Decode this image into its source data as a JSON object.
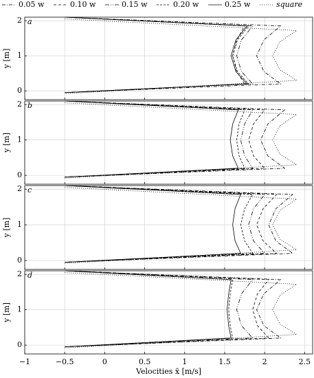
{
  "chart_data": [
    {
      "type": "line",
      "label": "a",
      "ylabel": "y [m]",
      "xlim": [
        -1,
        2.6
      ],
      "ylim": [
        -0.25,
        2.1
      ],
      "yticks": [
        0,
        1,
        2
      ],
      "xticks": [
        {
          "value": -1,
          "label": "−1"
        },
        {
          "value": -0.5,
          "label": "−0.5"
        },
        0,
        0.5,
        1,
        1.5,
        2,
        2.5
      ],
      "grid": true,
      "series": [
        {
          "name": "0.05 w",
          "color": "#000",
          "dash": "5 2 1 2",
          "x": [
            -0.5,
            2.2,
            1.99,
            1.9,
            1.99,
            2.2,
            -0.5
          ],
          "values": [
            2.1,
            1.85,
            1.45,
            1.0,
            0.55,
            0.2,
            -0.05
          ]
        },
        {
          "name": "0.10 w",
          "color": "#000",
          "dash": "4 3",
          "x": [
            -0.5,
            1.75,
            1.65,
            1.6,
            1.65,
            1.75,
            -0.5
          ],
          "values": [
            2.1,
            1.85,
            1.45,
            1.0,
            0.55,
            0.2,
            -0.05
          ]
        },
        {
          "name": "0.15 w",
          "color": "#000",
          "dash": "6 2 1 2 1 2",
          "x": [
            -0.5,
            1.85,
            1.71,
            1.65,
            1.71,
            1.85,
            -0.5
          ],
          "values": [
            2.1,
            1.85,
            1.45,
            1.0,
            0.55,
            0.2,
            -0.05
          ]
        },
        {
          "name": "0.20 w",
          "color": "#000",
          "dash": "3 2",
          "x": [
            -0.5,
            1.8,
            1.66,
            1.6,
            1.66,
            1.8,
            -0.5
          ],
          "values": [
            2.1,
            1.85,
            1.45,
            1.0,
            0.55,
            0.2,
            -0.05
          ]
        },
        {
          "name": "0.25 w",
          "color": "#000",
          "dash": "none",
          "x": [
            -0.5,
            1.78,
            1.64,
            1.58,
            1.64,
            1.78,
            -0.5
          ],
          "values": [
            2.1,
            1.85,
            1.45,
            1.0,
            0.55,
            0.2,
            -0.05
          ]
        },
        {
          "name": "square",
          "color": "#000",
          "dash": "1 2",
          "x": [
            -0.5,
            2.4,
            2.19,
            2.1,
            2.19,
            2.4,
            -0.5
          ],
          "values": [
            2.05,
            1.72,
            1.4,
            1.0,
            0.6,
            0.3,
            -0.08
          ]
        }
      ]
    },
    {
      "type": "line",
      "label": "b",
      "ylabel": "y [m]",
      "xlim": [
        -1,
        2.6
      ],
      "ylim": [
        -0.25,
        2.1
      ],
      "yticks": [
        0,
        1,
        2
      ],
      "xticks": [
        {
          "value": -1,
          "label": "−1"
        },
        {
          "value": -0.5,
          "label": "−0.5"
        },
        0,
        0.5,
        1,
        1.5,
        2,
        2.5
      ],
      "grid": true,
      "series": [
        {
          "name": "0.05 w",
          "color": "#000",
          "dash": "5 2 1 2",
          "x": [
            -0.5,
            2.25,
            2.04,
            1.95,
            2.04,
            2.25,
            -0.5
          ],
          "values": [
            2.1,
            1.85,
            1.45,
            1.0,
            0.55,
            0.2,
            -0.05
          ]
        },
        {
          "name": "0.10 w",
          "color": "#000",
          "dash": "4 3",
          "x": [
            -0.5,
            2.0,
            1.86,
            1.8,
            1.86,
            2.0,
            -0.5
          ],
          "values": [
            2.1,
            1.85,
            1.45,
            1.0,
            0.55,
            0.2,
            -0.05
          ]
        },
        {
          "name": "0.15 w",
          "color": "#000",
          "dash": "6 2 1 2 1 2",
          "x": [
            -0.5,
            1.85,
            1.75,
            1.7,
            1.75,
            1.85,
            -0.5
          ],
          "values": [
            2.1,
            1.85,
            1.45,
            1.0,
            0.55,
            0.2,
            -0.05
          ]
        },
        {
          "name": "0.20 w",
          "color": "#000",
          "dash": "3 2",
          "x": [
            -0.5,
            1.75,
            1.68,
            1.65,
            1.68,
            1.75,
            -0.5
          ],
          "values": [
            2.1,
            1.85,
            1.45,
            1.0,
            0.55,
            0.2,
            -0.05
          ]
        },
        {
          "name": "0.25 w",
          "color": "#000",
          "dash": "none",
          "x": [
            -0.5,
            1.67,
            1.6,
            1.57,
            1.6,
            1.67,
            -0.5
          ],
          "values": [
            2.1,
            1.85,
            1.45,
            1.0,
            0.55,
            0.2,
            -0.05
          ]
        },
        {
          "name": "square",
          "color": "#000",
          "dash": "1 2",
          "x": [
            -0.5,
            2.4,
            2.19,
            2.1,
            2.19,
            2.4,
            -0.5
          ],
          "values": [
            2.05,
            1.72,
            1.4,
            1.0,
            0.6,
            0.3,
            -0.08
          ]
        }
      ]
    },
    {
      "type": "line",
      "label": "c",
      "ylabel": "y [m]",
      "xlim": [
        -1,
        2.6
      ],
      "ylim": [
        -0.25,
        2.1
      ],
      "yticks": [
        0,
        1,
        2
      ],
      "xticks": [
        {
          "value": -1,
          "label": "−1"
        },
        {
          "value": -0.5,
          "label": "−0.5"
        },
        0,
        0.5,
        1,
        1.5,
        2,
        2.5
      ],
      "grid": true,
      "series": [
        {
          "name": "0.05 w",
          "color": "#000",
          "dash": "5 2 1 2",
          "x": [
            -0.5,
            2.35,
            2.14,
            2.05,
            2.14,
            2.35,
            -0.5
          ],
          "values": [
            2.1,
            1.85,
            1.45,
            1.0,
            0.55,
            0.2,
            -0.05
          ]
        },
        {
          "name": "0.10 w",
          "color": "#000",
          "dash": "4 3",
          "x": [
            -0.5,
            2.15,
            1.98,
            1.9,
            1.98,
            2.15,
            -0.5
          ],
          "values": [
            2.1,
            1.85,
            1.45,
            1.0,
            0.55,
            0.2,
            -0.05
          ]
        },
        {
          "name": "0.15 w",
          "color": "#000",
          "dash": "6 2 1 2 1 2",
          "x": [
            -0.5,
            2.0,
            1.86,
            1.8,
            1.86,
            2.0,
            -0.5
          ],
          "values": [
            2.1,
            1.85,
            1.45,
            1.0,
            0.55,
            0.2,
            -0.05
          ]
        },
        {
          "name": "0.20 w",
          "color": "#000",
          "dash": "3 2",
          "x": [
            -0.5,
            1.85,
            1.75,
            1.7,
            1.75,
            1.85,
            -0.5
          ],
          "values": [
            2.1,
            1.85,
            1.45,
            1.0,
            0.55,
            0.2,
            -0.05
          ]
        },
        {
          "name": "0.25 w",
          "color": "#000",
          "dash": "none",
          "x": [
            -0.5,
            1.7,
            1.63,
            1.6,
            1.63,
            1.7,
            -0.5
          ],
          "values": [
            2.1,
            1.85,
            1.45,
            1.0,
            0.55,
            0.2,
            -0.05
          ]
        },
        {
          "name": "square",
          "color": "#000",
          "dash": "1 2",
          "x": [
            -0.5,
            2.4,
            2.19,
            2.1,
            2.19,
            2.4,
            -0.5
          ],
          "values": [
            2.05,
            1.72,
            1.4,
            1.0,
            0.6,
            0.3,
            -0.08
          ]
        }
      ]
    },
    {
      "type": "line",
      "label": "d",
      "ylabel": "y [m]",
      "xlabel": "Velocities x̄ [m/s]",
      "xlim": [
        -1,
        2.6
      ],
      "ylim": [
        -0.25,
        2.1
      ],
      "yticks": [
        0,
        1,
        2
      ],
      "xticks": [
        {
          "value": -1,
          "label": "−1"
        },
        {
          "value": -0.5,
          "label": "−0.5"
        },
        0,
        0.5,
        1,
        1.5,
        2,
        2.5
      ],
      "grid": true,
      "series": [
        {
          "name": "0.05 w",
          "color": "#000",
          "dash": "5 2 1 2",
          "x": [
            -0.5,
            2.2,
            1.99,
            1.9,
            1.99,
            2.2,
            -0.5
          ],
          "values": [
            2.1,
            1.85,
            1.45,
            1.0,
            0.55,
            0.2,
            -0.05
          ]
        },
        {
          "name": "0.10 w",
          "color": "#000",
          "dash": "4 3",
          "x": [
            -0.5,
            2.05,
            1.91,
            1.85,
            1.91,
            2.05,
            -0.5
          ],
          "values": [
            2.1,
            1.85,
            1.45,
            1.0,
            0.55,
            0.2,
            -0.05
          ]
        },
        {
          "name": "0.15 w",
          "color": "#000",
          "dash": "6 2 1 2 1 2",
          "x": [
            -0.5,
            1.85,
            1.71,
            1.65,
            1.71,
            1.85,
            -0.5
          ],
          "values": [
            2.1,
            1.85,
            1.45,
            1.0,
            0.55,
            0.2,
            -0.05
          ]
        },
        {
          "name": "0.20 w",
          "color": "#000",
          "dash": "3 2",
          "x": [
            -0.5,
            1.6,
            1.57,
            1.55,
            1.57,
            1.6,
            -0.5
          ],
          "values": [
            2.1,
            1.85,
            1.45,
            1.0,
            0.55,
            0.2,
            -0.05
          ]
        },
        {
          "name": "0.25 w",
          "color": "#000",
          "dash": "none",
          "x": [
            -0.5,
            1.58,
            1.55,
            1.53,
            1.55,
            1.58,
            -0.5
          ],
          "values": [
            2.1,
            1.85,
            1.45,
            1.0,
            0.55,
            0.2,
            -0.05
          ]
        },
        {
          "name": "square",
          "color": "#000",
          "dash": "1 2",
          "x": [
            -0.5,
            2.4,
            2.19,
            2.1,
            2.19,
            2.4,
            -0.5
          ],
          "values": [
            2.05,
            1.72,
            1.4,
            1.0,
            0.6,
            0.3,
            -0.08
          ]
        }
      ]
    }
  ]
}
